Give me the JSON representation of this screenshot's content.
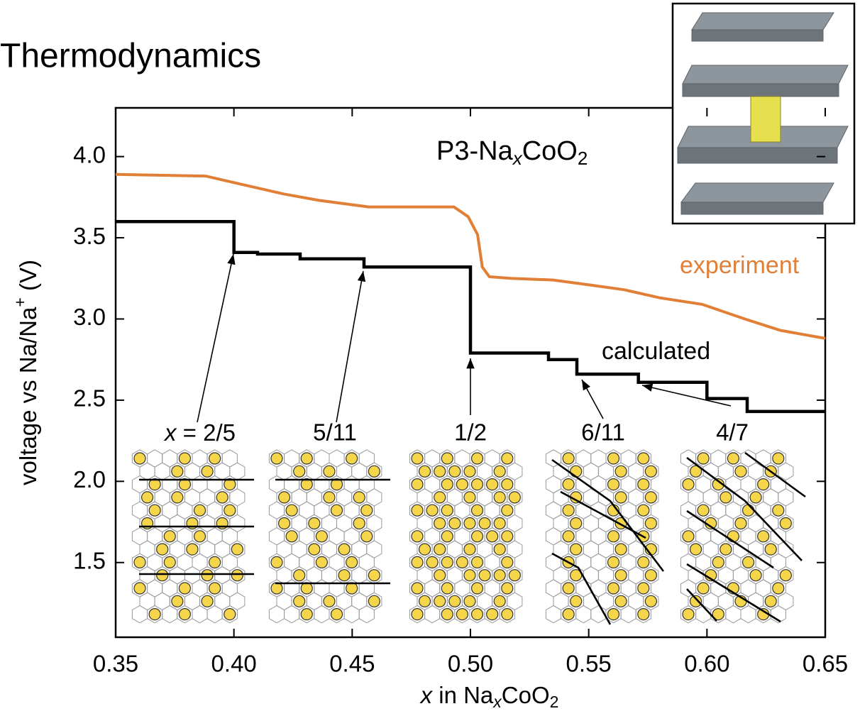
{
  "chart_data": {
    "type": "line",
    "title": "Thermodynamics",
    "annotation": [
      "P3-Na",
      "x",
      "CoO",
      "2"
    ],
    "xlabel": [
      "x",
      " in Na",
      "x",
      "CoO",
      "2"
    ],
    "ylabel": [
      "voltage vs Na/Na",
      "+",
      " (V)"
    ],
    "xlim": [
      0.35,
      0.65
    ],
    "ylim": [
      1.04,
      4.3
    ],
    "xticks": [
      0.35,
      {
        "value": 0.4,
        "label": "0.40"
      },
      0.45,
      {
        "value": 0.5,
        "label": "0.50"
      },
      0.55,
      {
        "value": 0.6,
        "label": "0.60"
      },
      0.65
    ],
    "yticks": [
      1.5,
      {
        "value": 2,
        "label": "2.0"
      },
      2.5,
      {
        "value": 3,
        "label": "3.0"
      },
      3.5,
      {
        "value": 4,
        "label": "4.0"
      }
    ],
    "series": [
      {
        "name": "experiment",
        "color": "#e07f35",
        "x": [
          0.35,
          0.388,
          0.4,
          0.421,
          0.436,
          0.457,
          0.481,
          0.493,
          0.499,
          0.503,
          0.505,
          0.508,
          0.517,
          0.535,
          0.55,
          0.565,
          0.58,
          0.598,
          0.616,
          0.631,
          0.65
        ],
        "values": [
          3.89,
          3.88,
          3.84,
          3.77,
          3.73,
          3.69,
          3.69,
          3.69,
          3.63,
          3.52,
          3.32,
          3.26,
          3.25,
          3.24,
          3.21,
          3.18,
          3.13,
          3.09,
          3.0,
          2.93,
          2.88
        ]
      },
      {
        "name": "calculated",
        "color": "#000000",
        "x": [
          0.35,
          0.4,
          0.4,
          0.41,
          0.41,
          0.428,
          0.428,
          0.455,
          0.455,
          0.5,
          0.5,
          0.533,
          0.533,
          0.545,
          0.545,
          0.571,
          0.571,
          0.6,
          0.6,
          0.617,
          0.617,
          0.65
        ],
        "values": [
          3.6,
          3.6,
          3.41,
          3.41,
          3.4,
          3.4,
          3.37,
          3.37,
          3.32,
          3.32,
          2.79,
          2.79,
          2.75,
          2.75,
          2.66,
          2.66,
          2.61,
          2.61,
          2.51,
          2.51,
          2.43,
          2.43
        ]
      }
    ],
    "arrow_labels": [
      [
        "x",
        " = 2/5"
      ],
      [
        "5/11"
      ],
      [
        "1/2"
      ],
      [
        "6/11"
      ],
      [
        "4/7"
      ]
    ]
  }
}
